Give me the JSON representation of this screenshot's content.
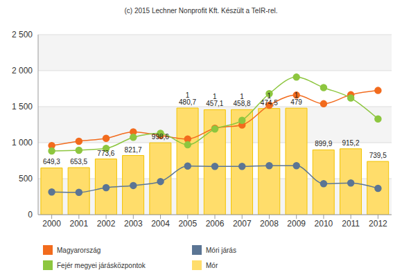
{
  "chart_data": {
    "type": "combo",
    "title": "(c) 2015 Lechner Nonprofit Kft. Készült a TeIR-rel.",
    "categories": [
      "2000",
      "2001",
      "2002",
      "2003",
      "2004",
      "2005",
      "2006",
      "2007",
      "2008",
      "2009",
      "2010",
      "2011",
      "2012"
    ],
    "series": [
      {
        "name": "Magyarország",
        "type": "line",
        "marker": "circle",
        "color": "#f26b1d",
        "values": [
          960,
          1020,
          1060,
          1150,
          1100,
          1050,
          1200,
          1245,
          1520,
          1660,
          1540,
          1665,
          1725
        ]
      },
      {
        "name": "Fejér megyei járásközpontok",
        "type": "line",
        "marker": "circle",
        "color": "#8dc63f",
        "values": [
          885,
          895,
          920,
          1075,
          1130,
          970,
          1190,
          1310,
          1680,
          1910,
          1765,
          1620,
          1330
        ]
      },
      {
        "name": "Móri járás",
        "type": "line",
        "marker": "circle",
        "color": "#5b7594",
        "values": [
          315,
          310,
          375,
          405,
          460,
          675,
          670,
          670,
          680,
          680,
          430,
          440,
          365
        ]
      },
      {
        "name": "Mór",
        "type": "bar",
        "color": "#ffdd6b",
        "values": [
          649.3,
          653.5,
          773.6,
          821.7,
          998.6,
          1480.7,
          1457.1,
          1458.8,
          1474.5,
          1479,
          899.9,
          915.2,
          739.5
        ],
        "value_labels": [
          "649,3",
          "653,5",
          "773,6",
          "821,7",
          "998,6",
          "1 480,7",
          "1 457,1",
          "1 458,8",
          "1 474,5",
          "1 479",
          "899,9",
          "915,2",
          "739,5"
        ]
      }
    ],
    "ylim": [
      0,
      2500
    ],
    "yticks": [
      0,
      500,
      {
        "value": 1000,
        "label": "1 000"
      },
      {
        "value": 1500,
        "label": "1 500"
      },
      {
        "value": 2000,
        "label": "2 000"
      },
      {
        "value": 2500,
        "label": "2 500"
      }
    ],
    "grid": true,
    "data_labels": true,
    "legend": "bottom left"
  }
}
